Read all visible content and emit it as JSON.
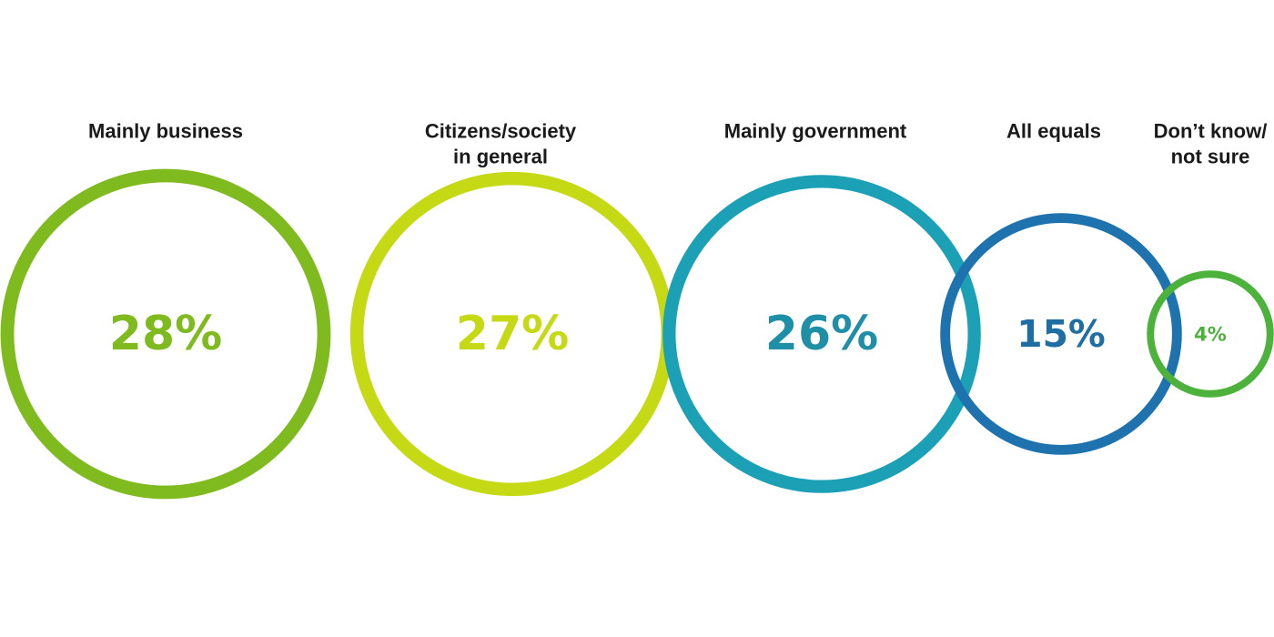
{
  "chart_data": {
    "type": "bubble",
    "categories": [
      "Mainly business",
      "Citizens/society in general",
      "Mainly government",
      "All equals",
      "Don’t know/ not sure"
    ],
    "category_lines": [
      [
        "Mainly business"
      ],
      [
        "Citizens/society",
        "in general"
      ],
      [
        "Mainly government"
      ],
      [
        "All equals"
      ],
      [
        "Don’t know/",
        "not sure"
      ]
    ],
    "values": [
      28,
      27,
      26,
      15,
      4
    ],
    "value_labels": [
      "28%",
      "27%",
      "26%",
      "15%",
      "4%"
    ],
    "unit": "%",
    "colors": [
      "#7fba1f",
      "#c5d914",
      "#1ba0b6",
      "#1e73ae",
      "#4cb23b"
    ],
    "label_colors": [
      "#7fba1f",
      "#c5d914",
      "#1f8fa7",
      "#1f6ea3",
      "#4cb23b"
    ]
  }
}
